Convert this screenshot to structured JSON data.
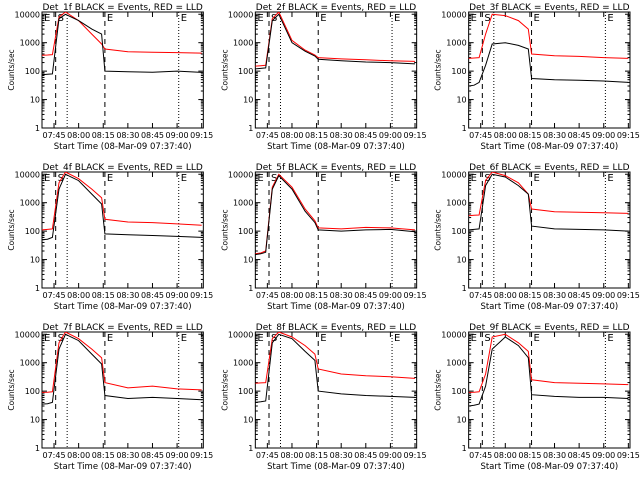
{
  "page": {
    "background": "#ffffff"
  },
  "colors": {
    "events": "#000000",
    "lld": "#ff0000",
    "axis": "#000000",
    "dashed": "#000000",
    "dotted": "#000000"
  },
  "common": {
    "xlabel": "Start Time (08-Mar-09 07:37:40)",
    "ylabel": "Counts/sec",
    "x_tick_labels": [
      "07:45",
      "08:00",
      "08:15",
      "08:30",
      "08:45",
      "09:00",
      "09:15"
    ],
    "y_tick_labels": [
      "1",
      "10",
      "100",
      "1000",
      "10000"
    ],
    "marker_letters": [
      "E",
      "S",
      "E",
      "E"
    ]
  },
  "chart_data": [
    {
      "type": "line",
      "title": "Det_1f BLACK = Events, RED = LLD",
      "x": [
        "07:37:40",
        "07:41",
        "07:44",
        "07:48",
        "07:52",
        "08:00",
        "08:08",
        "08:14",
        "08:16",
        "08:30",
        "08:45",
        "09:00",
        "09:15"
      ],
      "series": [
        {
          "name": "Events",
          "color": "#000000",
          "values": [
            75,
            78,
            80,
            7000,
            10000,
            6000,
            3000,
            2000,
            100,
            95,
            92,
            100,
            90
          ]
        },
        {
          "name": "LLD",
          "color": "#ff0000",
          "values": [
            360,
            370,
            380,
            8000,
            12000,
            6000,
            2000,
            900,
            600,
            480,
            460,
            450,
            430
          ]
        }
      ],
      "xlim": [
        "07:37:40",
        "09:16"
      ],
      "ylim": [
        1,
        12000
      ],
      "log_y": true,
      "vlines": {
        "dashed": [
          "07:46",
          "08:16"
        ],
        "dotted": [
          "07:53",
          "09:01"
        ]
      }
    },
    {
      "type": "line",
      "title": "Det_2f BLACK = Events, RED = LLD",
      "x": [
        "07:37:40",
        "07:41",
        "07:44",
        "07:48",
        "07:52",
        "08:00",
        "08:08",
        "08:14",
        "08:16",
        "08:30",
        "08:45",
        "09:00",
        "09:15"
      ],
      "series": [
        {
          "name": "Events",
          "color": "#000000",
          "values": [
            120,
            125,
            130,
            6000,
            10000,
            1000,
            500,
            340,
            260,
            230,
            210,
            200,
            180
          ]
        },
        {
          "name": "LLD",
          "color": "#ff0000",
          "values": [
            150,
            155,
            160,
            7000,
            12000,
            1200,
            550,
            370,
            300,
            270,
            250,
            230,
            220
          ]
        }
      ],
      "xlim": [
        "07:37:40",
        "09:16"
      ],
      "ylim": [
        1,
        12000
      ],
      "log_y": true,
      "vlines": {
        "dashed": [
          "07:46",
          "08:16"
        ],
        "dotted": [
          "07:53",
          "09:01"
        ]
      }
    },
    {
      "type": "line",
      "title": "Det_3f BLACK = Events, RED = LLD",
      "x": [
        "07:37:40",
        "07:41",
        "07:44",
        "07:48",
        "07:52",
        "08:00",
        "08:08",
        "08:14",
        "08:16",
        "08:30",
        "08:45",
        "09:00",
        "09:15"
      ],
      "series": [
        {
          "name": "Events",
          "color": "#000000",
          "values": [
            30,
            32,
            40,
            160,
            900,
            1000,
            800,
            600,
            55,
            50,
            48,
            45,
            40
          ]
        },
        {
          "name": "LLD",
          "color": "#ff0000",
          "values": [
            280,
            290,
            300,
            2000,
            10000,
            9000,
            6000,
            3000,
            400,
            350,
            330,
            300,
            280
          ]
        }
      ],
      "xlim": [
        "07:37:40",
        "09:16"
      ],
      "ylim": [
        1,
        12000
      ],
      "log_y": true,
      "vlines": {
        "dashed": [
          "07:46",
          "08:16"
        ],
        "dotted": [
          "07:53",
          "09:01"
        ]
      }
    },
    {
      "type": "line",
      "title": "Det_4f BLACK = Events, RED = LLD",
      "x": [
        "07:37:40",
        "07:41",
        "07:44",
        "07:48",
        "07:52",
        "08:00",
        "08:08",
        "08:14",
        "08:16",
        "08:30",
        "08:45",
        "09:00",
        "09:15"
      ],
      "series": [
        {
          "name": "Events",
          "color": "#000000",
          "values": [
            50,
            52,
            60,
            3000,
            10000,
            6000,
            2000,
            900,
            80,
            75,
            70,
            65,
            60
          ]
        },
        {
          "name": "LLD",
          "color": "#ff0000",
          "values": [
            110,
            115,
            120,
            5000,
            12000,
            7000,
            3000,
            1500,
            260,
            210,
            200,
            180,
            160
          ]
        }
      ],
      "xlim": [
        "07:37:40",
        "09:16"
      ],
      "ylim": [
        1,
        12000
      ],
      "log_y": true,
      "vlines": {
        "dashed": [
          "07:46",
          "08:16"
        ],
        "dotted": [
          "07:53",
          "09:01"
        ]
      }
    },
    {
      "type": "line",
      "title": "Det_5f BLACK = Events, RED = LLD",
      "x": [
        "07:37:40",
        "07:41",
        "07:44",
        "07:48",
        "07:52",
        "08:00",
        "08:08",
        "08:14",
        "08:16",
        "08:30",
        "08:45",
        "09:00",
        "09:15"
      ],
      "series": [
        {
          "name": "Events",
          "color": "#000000",
          "values": [
            15,
            16,
            18,
            3000,
            9000,
            3000,
            500,
            200,
            110,
            100,
            110,
            115,
            95
          ]
        },
        {
          "name": "LLD",
          "color": "#ff0000",
          "values": [
            16,
            17,
            20,
            3500,
            10000,
            3500,
            600,
            230,
            130,
            120,
            135,
            130,
            110
          ]
        }
      ],
      "xlim": [
        "07:37:40",
        "09:16"
      ],
      "ylim": [
        1,
        12000
      ],
      "log_y": true,
      "vlines": {
        "dashed": [
          "07:46",
          "08:16"
        ],
        "dotted": [
          "07:53",
          "09:01"
        ]
      }
    },
    {
      "type": "line",
      "title": "Det_6f BLACK = Events, RED = LLD",
      "x": [
        "07:37:40",
        "07:41",
        "07:44",
        "07:48",
        "07:52",
        "08:00",
        "08:08",
        "08:14",
        "08:16",
        "08:30",
        "08:45",
        "09:00",
        "09:15"
      ],
      "series": [
        {
          "name": "Events",
          "color": "#000000",
          "values": [
            110,
            115,
            120,
            4000,
            10000,
            8000,
            4000,
            2000,
            150,
            120,
            115,
            110,
            100
          ]
        },
        {
          "name": "LLD",
          "color": "#ff0000",
          "values": [
            350,
            360,
            370,
            6000,
            12000,
            9000,
            5000,
            2000,
            600,
            480,
            460,
            440,
            420
          ]
        }
      ],
      "xlim": [
        "07:37:40",
        "09:16"
      ],
      "ylim": [
        1,
        12000
      ],
      "log_y": true,
      "vlines": {
        "dashed": [
          "07:46",
          "08:16"
        ],
        "dotted": [
          "07:53",
          "09:01"
        ]
      }
    },
    {
      "type": "line",
      "title": "Det_7f BLACK = Events, RED = LLD",
      "x": [
        "07:37:40",
        "07:41",
        "07:44",
        "07:48",
        "07:52",
        "08:00",
        "08:08",
        "08:14",
        "08:16",
        "08:30",
        "08:45",
        "09:00",
        "09:15"
      ],
      "series": [
        {
          "name": "Events",
          "color": "#000000",
          "values": [
            35,
            36,
            40,
            3000,
            10000,
            6000,
            2000,
            900,
            70,
            55,
            60,
            55,
            50
          ]
        },
        {
          "name": "LLD",
          "color": "#ff0000",
          "values": [
            90,
            92,
            95,
            5000,
            12000,
            7000,
            3000,
            1500,
            200,
            130,
            150,
            120,
            110
          ]
        }
      ],
      "xlim": [
        "07:37:40",
        "09:16"
      ],
      "ylim": [
        1,
        12000
      ],
      "log_y": true,
      "vlines": {
        "dashed": [
          "07:46",
          "08:16"
        ],
        "dotted": [
          "07:53",
          "09:01"
        ]
      }
    },
    {
      "type": "line",
      "title": "Det_8f BLACK = Events, RED = LLD",
      "x": [
        "07:37:40",
        "07:41",
        "07:44",
        "07:48",
        "07:52",
        "08:00",
        "08:08",
        "08:14",
        "08:16",
        "08:30",
        "08:45",
        "09:00",
        "09:15"
      ],
      "series": [
        {
          "name": "Events",
          "color": "#000000",
          "values": [
            40,
            42,
            45,
            5000,
            10000,
            7000,
            2500,
            1200,
            100,
            80,
            70,
            65,
            60
          ]
        },
        {
          "name": "LLD",
          "color": "#ff0000",
          "values": [
            190,
            195,
            200,
            7000,
            12000,
            8000,
            4000,
            2000,
            600,
            400,
            350,
            320,
            280
          ]
        }
      ],
      "xlim": [
        "07:37:40",
        "09:16"
      ],
      "ylim": [
        1,
        12000
      ],
      "log_y": true,
      "vlines": {
        "dashed": [
          "07:46",
          "08:16"
        ],
        "dotted": [
          "07:53",
          "09:01"
        ]
      }
    },
    {
      "type": "line",
      "title": "Det_9f BLACK = Events, RED = LLD",
      "x": [
        "07:37:40",
        "07:41",
        "07:44",
        "07:48",
        "07:52",
        "08:00",
        "08:08",
        "08:14",
        "08:16",
        "08:30",
        "08:45",
        "09:00",
        "09:15"
      ],
      "series": [
        {
          "name": "Events",
          "color": "#000000",
          "values": [
            30,
            32,
            35,
            150,
            3000,
            8000,
            4000,
            1500,
            75,
            65,
            60,
            60,
            55
          ]
        },
        {
          "name": "LLD",
          "color": "#ff0000",
          "values": [
            90,
            92,
            95,
            400,
            8000,
            10000,
            5000,
            2500,
            250,
            200,
            190,
            180,
            170
          ]
        }
      ],
      "xlim": [
        "07:37:40",
        "09:16"
      ],
      "ylim": [
        1,
        12000
      ],
      "log_y": true,
      "vlines": {
        "dashed": [
          "07:46",
          "08:16"
        ],
        "dotted": [
          "07:53",
          "09:01"
        ]
      }
    }
  ]
}
